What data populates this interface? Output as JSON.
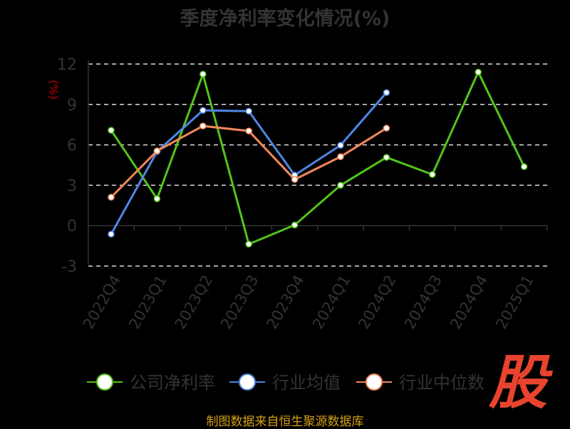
{
  "chart_data": {
    "type": "line",
    "title": "季度净利率变化情况(%)",
    "ylabel": "(%)",
    "categories": [
      "2022Q4",
      "2023Q1",
      "2023Q2",
      "2023Q3",
      "2023Q4",
      "2024Q1",
      "2024Q2",
      "2024Q3",
      "2024Q4",
      "2025Q1"
    ],
    "ylim": [
      -3,
      12
    ],
    "yticks": [
      -3,
      0,
      3,
      6,
      9,
      12
    ],
    "grid": true,
    "legend_placement": "bottom",
    "series": [
      {
        "name": "公司净利率",
        "color": "#52c41a",
        "values": [
          7.08,
          2.0,
          11.25,
          -1.37,
          0.05,
          3.0,
          5.07,
          3.8,
          11.4,
          4.38
        ]
      },
      {
        "name": "行业均值",
        "color": "#4e86e4",
        "values": [
          -0.63,
          5.5,
          8.56,
          8.5,
          3.75,
          5.97,
          9.88,
          null,
          null,
          null
        ]
      },
      {
        "name": "行业中位数",
        "color": "#f4875a",
        "values": [
          2.11,
          5.55,
          7.4,
          7.03,
          3.43,
          5.12,
          7.24,
          null,
          null,
          null
        ]
      }
    ]
  },
  "source": "制图数据来自恒生聚源数据库",
  "logo_text": "股"
}
